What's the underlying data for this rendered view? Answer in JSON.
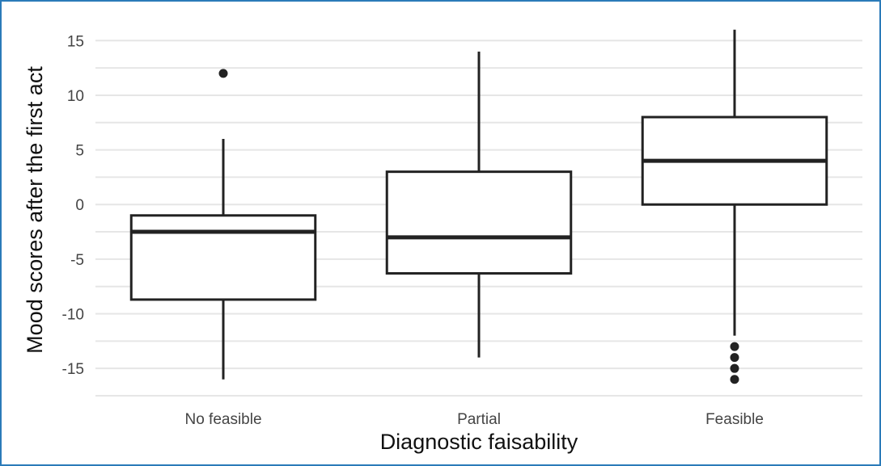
{
  "chart_data": {
    "type": "boxplot",
    "xlabel": "Diagnostic faisability",
    "ylabel": "Mood scores after the first act",
    "ylim": [
      -17.5,
      16.5
    ],
    "y_ticks": [
      -15,
      -10,
      -5,
      0,
      5,
      10,
      15
    ],
    "grid": true,
    "categories": [
      "No feasible",
      "Partial",
      "Feasible"
    ],
    "boxes": [
      {
        "category": "No feasible",
        "whisker_low": -16,
        "q1": -8.7,
        "median": -2.5,
        "q3": -1,
        "whisker_high": 6,
        "outliers": [
          12
        ]
      },
      {
        "category": "Partial",
        "whisker_low": -14,
        "q1": -6.3,
        "median": -3,
        "q3": 3,
        "whisker_high": 14,
        "outliers": []
      },
      {
        "category": "Feasible",
        "whisker_low": -12,
        "q1": 0,
        "median": 4,
        "q3": 8,
        "whisker_high": 16,
        "outliers": [
          -13,
          -14,
          -15,
          -16
        ]
      }
    ],
    "colors": {
      "grid": "#e6e6e6",
      "box_stroke": "#222222",
      "box_fill": "#ffffff",
      "frame": "#2b7bb9"
    }
  }
}
